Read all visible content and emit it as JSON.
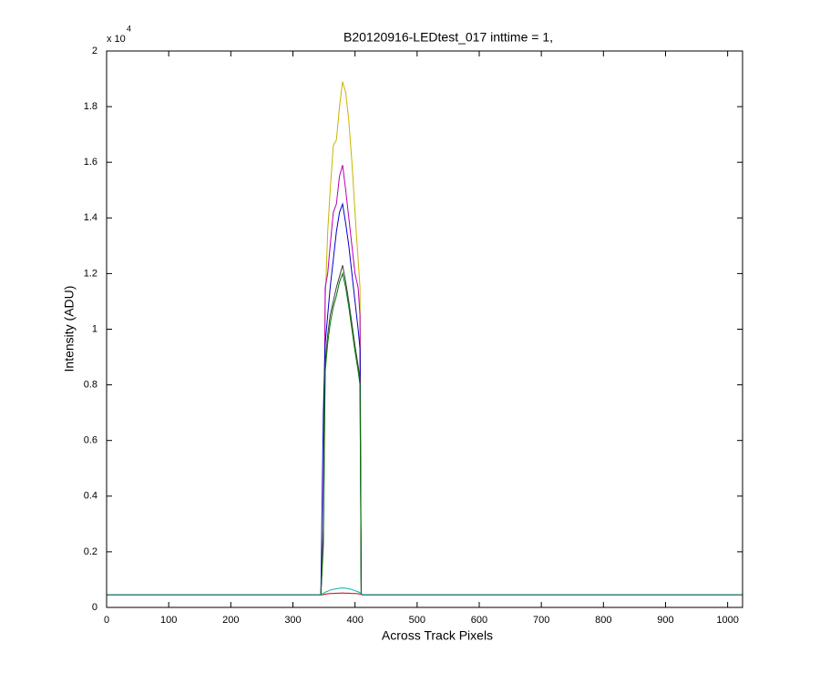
{
  "chart_data": {
    "type": "line",
    "title": "B20120916-LEDtest_017 inttime = 1,",
    "xlabel": "Across Track Pixels",
    "ylabel": "Intensity (ADU)",
    "y_scale_label": "x 10",
    "y_scale_exponent": "4",
    "xlim": [
      0,
      1024
    ],
    "xticks": [
      0,
      100,
      200,
      300,
      400,
      500,
      600,
      700,
      800,
      900,
      1000
    ],
    "ylim": [
      0,
      2
    ],
    "yticks": [
      0,
      0.2,
      0.4,
      0.6,
      0.8,
      1,
      1.2,
      1.4,
      1.6,
      1.8,
      2
    ],
    "grid": false,
    "box": true,
    "x": [
      0,
      100,
      200,
      300,
      345,
      349,
      352,
      356,
      360,
      365,
      370,
      375,
      380,
      385,
      390,
      395,
      400,
      405,
      408,
      410,
      412,
      420,
      500,
      600,
      700,
      800,
      900,
      1024
    ],
    "series": [
      {
        "name": "yellow",
        "color": "#c8b400",
        "values": [
          0.045,
          0.045,
          0.045,
          0.045,
          0.045,
          0.3,
          1.1,
          1.35,
          1.5,
          1.66,
          1.68,
          1.8,
          1.89,
          1.85,
          1.75,
          1.6,
          1.42,
          1.25,
          1.15,
          0.05,
          0.045,
          0.045,
          0.045,
          0.045,
          0.045,
          0.045,
          0.045,
          0.045
        ]
      },
      {
        "name": "magenta",
        "color": "#b400b4",
        "values": [
          0.045,
          0.045,
          0.045,
          0.045,
          0.045,
          0.28,
          1.15,
          1.2,
          1.3,
          1.42,
          1.45,
          1.55,
          1.59,
          1.5,
          1.4,
          1.3,
          1.2,
          1.15,
          1.05,
          0.05,
          0.045,
          0.045,
          0.045,
          0.045,
          0.045,
          0.045,
          0.045,
          0.045
        ]
      },
      {
        "name": "blue",
        "color": "#0000c8",
        "values": [
          0.045,
          0.045,
          0.045,
          0.045,
          0.045,
          0.7,
          0.95,
          1.05,
          1.15,
          1.25,
          1.35,
          1.42,
          1.45,
          1.38,
          1.3,
          1.2,
          1.1,
          1.0,
          0.93,
          0.05,
          0.045,
          0.045,
          0.045,
          0.045,
          0.045,
          0.045,
          0.045,
          0.045
        ]
      },
      {
        "name": "black",
        "color": "#404040",
        "values": [
          0.045,
          0.045,
          0.045,
          0.045,
          0.045,
          0.25,
          0.88,
          0.98,
          1.05,
          1.1,
          1.15,
          1.19,
          1.23,
          1.17,
          1.1,
          1.02,
          0.94,
          0.87,
          0.82,
          0.05,
          0.045,
          0.045,
          0.045,
          0.045,
          0.045,
          0.045,
          0.045,
          0.045
        ]
      },
      {
        "name": "green",
        "color": "#007800",
        "values": [
          0.045,
          0.045,
          0.045,
          0.045,
          0.045,
          0.22,
          0.85,
          0.95,
          1.02,
          1.08,
          1.12,
          1.17,
          1.2,
          1.15,
          1.08,
          1.0,
          0.92,
          0.85,
          0.8,
          0.05,
          0.045,
          0.045,
          0.045,
          0.045,
          0.045,
          0.045,
          0.045,
          0.045
        ]
      },
      {
        "name": "red",
        "color": "#d00000",
        "values": [
          0.045,
          0.045,
          0.045,
          0.045,
          0.045,
          0.046,
          0.048,
          0.049,
          0.05,
          0.05,
          0.051,
          0.051,
          0.052,
          0.051,
          0.051,
          0.05,
          0.05,
          0.049,
          0.048,
          0.046,
          0.045,
          0.045,
          0.045,
          0.045,
          0.045,
          0.045,
          0.045,
          0.045
        ]
      },
      {
        "name": "cyan",
        "color": "#00b4b4",
        "values": [
          0.045,
          0.045,
          0.045,
          0.045,
          0.045,
          0.05,
          0.055,
          0.058,
          0.062,
          0.065,
          0.067,
          0.069,
          0.07,
          0.069,
          0.067,
          0.064,
          0.06,
          0.056,
          0.053,
          0.048,
          0.045,
          0.045,
          0.045,
          0.045,
          0.045,
          0.045,
          0.045,
          0.045
        ]
      }
    ]
  }
}
